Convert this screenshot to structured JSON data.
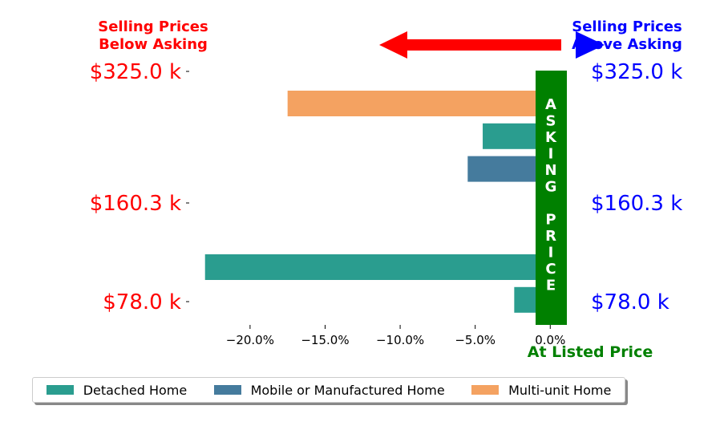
{
  "header": {
    "below_asking": [
      "Selling Prices",
      "Below Asking"
    ],
    "above_asking": [
      "Selling Prices",
      "Above Asking"
    ]
  },
  "labels": {
    "asking_price_letters": [
      "A",
      "S",
      "K",
      "I",
      "N",
      "G",
      "",
      "P",
      "R",
      "I",
      "C",
      "E"
    ],
    "at_listed_price": "At Listed Price"
  },
  "colors": {
    "below": "#ff0000",
    "above": "#0000ff",
    "asking": "#008000"
  },
  "chart_data": {
    "type": "bar",
    "orientation": "horizontal",
    "price_tiers_left": [
      "$325.0 k",
      "$160.3 k",
      "$78.0 k"
    ],
    "price_tiers_right": [
      "$325.0 k",
      "$160.3 k",
      "$78.0 k"
    ],
    "xlim": [
      -24,
      1
    ],
    "x_ticks": [
      -20,
      -15,
      -10,
      -5,
      0
    ],
    "x_tick_labels": [
      "−20.0%",
      "−15.0%",
      "−10.0%",
      "−5.0%",
      "0.0%"
    ],
    "series": [
      {
        "name": "Detached Home",
        "color": "#2a9d8f"
      },
      {
        "name": "Mobile or Manufactured Home",
        "color": "#457b9d"
      },
      {
        "name": "Multi-unit Home",
        "color": "#f4a261"
      }
    ],
    "bars": [
      {
        "tier": "$325.0 k",
        "series": "Multi-unit Home",
        "value": -17.5
      },
      {
        "tier": "$325.0 k",
        "series": "Detached Home",
        "value": -4.5
      },
      {
        "tier": "$325.0 k",
        "series": "Mobile or Manufactured Home",
        "value": -5.5
      },
      {
        "tier": "$160.3 k",
        "series": "Detached Home",
        "value": 0.8
      },
      {
        "tier": "$160.3 k",
        "series": "Detached Home",
        "value": 0.6
      },
      {
        "tier": "$78.0 k",
        "series": "Detached Home",
        "value": -23.0
      },
      {
        "tier": "$78.0 k",
        "series": "Detached Home",
        "value": -2.4
      }
    ]
  }
}
